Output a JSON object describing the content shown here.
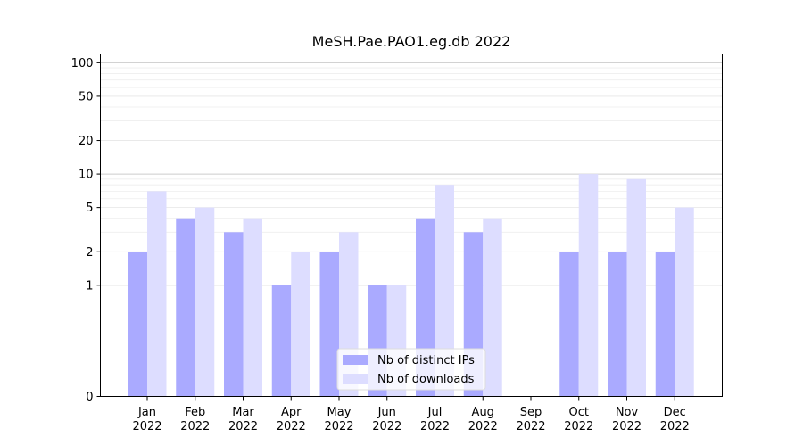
{
  "chart_data": {
    "type": "bar",
    "title": "MeSH.Pae.PAO1.eg.db 2022",
    "xlabel": "",
    "ylabel": "",
    "y_scale": "symlog",
    "ylim": [
      0,
      120
    ],
    "y_ticks": [
      0,
      1,
      2,
      5,
      10,
      20,
      50,
      100
    ],
    "grid": true,
    "legend_position": "bottom-center",
    "categories": [
      [
        "Jan",
        "2022"
      ],
      [
        "Feb",
        "2022"
      ],
      [
        "Mar",
        "2022"
      ],
      [
        "Apr",
        "2022"
      ],
      [
        "May",
        "2022"
      ],
      [
        "Jun",
        "2022"
      ],
      [
        "Jul",
        "2022"
      ],
      [
        "Aug",
        "2022"
      ],
      [
        "Sep",
        "2022"
      ],
      [
        "Oct",
        "2022"
      ],
      [
        "Nov",
        "2022"
      ],
      [
        "Dec",
        "2022"
      ]
    ],
    "series": [
      {
        "name": "Nb of distinct IPs",
        "color": "#aaaaff",
        "values": [
          2,
          4,
          3,
          1,
          2,
          1,
          4,
          3,
          0,
          2,
          2,
          2
        ]
      },
      {
        "name": "Nb of downloads",
        "color": "#ddddff",
        "values": [
          7,
          5,
          4,
          2,
          3,
          1,
          8,
          4,
          0,
          10,
          9,
          5
        ]
      }
    ]
  }
}
